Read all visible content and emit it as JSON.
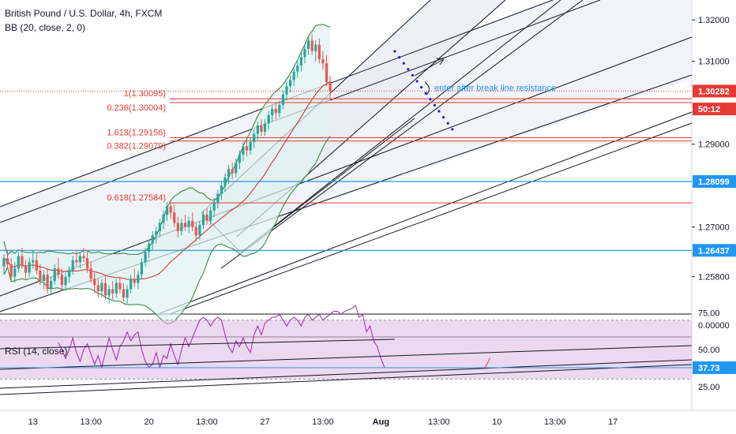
{
  "header": {
    "title": "British Pound / U.S. Dollar, 4h, FXCM",
    "indicator": "BB (20, close, 2, 0)",
    "rsi_label": "RSI (14, close)"
  },
  "annotation": "enter after break line resistance",
  "colors": {
    "bull": "#26a69a",
    "bear": "#ef5350",
    "fib": "#e53935",
    "horizontal": "#2196f3",
    "rsi": "#9c27b0",
    "rsi_fill": "#e1bee7",
    "dotted": "#1a1aff",
    "trendline": "#131722"
  },
  "chart_data": {
    "type": "candlestick",
    "price_axis": {
      "ticks": [
        1.32,
        1.31,
        1.29,
        1.27,
        1.258
      ],
      "tick_labels": [
        "1.32000",
        "1.31000",
        "1.29000",
        "1.27000",
        "1.25800"
      ],
      "range": [
        1.249,
        1.3248
      ]
    },
    "price_tags": [
      {
        "value": 1.30282,
        "label": "1.30282",
        "color": "#e53935"
      },
      {
        "value": 1.2985,
        "label": "50:12",
        "color": "#e53935"
      },
      {
        "value": 1.28099,
        "label": "1.28099",
        "color": "#2196f3"
      },
      {
        "value": 1.26437,
        "label": "1.26437",
        "color": "#2196f3"
      }
    ],
    "horizontal_lines": [
      {
        "value": 1.28099,
        "color": "#2196f3"
      },
      {
        "value": 1.26437,
        "color": "#2196f3"
      },
      {
        "value": 1.30282,
        "color": "#e53935",
        "dotted": true
      }
    ],
    "fib_levels": [
      {
        "label": "1(1.30095)",
        "value": 1.30095
      },
      {
        "label": "0.236(1.30004)",
        "value": 1.30004
      },
      {
        "label": "1.618(1.29156)",
        "value": 1.29156
      },
      {
        "label": "0.382(1.29079)",
        "value": 1.29079
      },
      {
        "label": "0.618(1.27584)",
        "value": 1.27584
      }
    ],
    "candles": [
      [
        1.2605,
        1.2635,
        1.2585,
        1.2625
      ],
      [
        1.2625,
        1.2645,
        1.26,
        1.261
      ],
      [
        1.261,
        1.2625,
        1.257,
        1.258
      ],
      [
        1.258,
        1.2615,
        1.2565,
        1.26
      ],
      [
        1.26,
        1.264,
        1.259,
        1.263
      ],
      [
        1.263,
        1.265,
        1.26,
        1.2605
      ],
      [
        1.2605,
        1.262,
        1.2575,
        1.259
      ],
      [
        1.259,
        1.2625,
        1.258,
        1.2615
      ],
      [
        1.2615,
        1.2645,
        1.26,
        1.262
      ],
      [
        1.262,
        1.2635,
        1.2585,
        1.2595
      ],
      [
        1.2595,
        1.261,
        1.256,
        1.257
      ],
      [
        1.257,
        1.2595,
        1.255,
        1.2585
      ],
      [
        1.2585,
        1.26,
        1.254,
        1.255
      ],
      [
        1.255,
        1.258,
        1.2535,
        1.257
      ],
      [
        1.257,
        1.261,
        1.256,
        1.26
      ],
      [
        1.26,
        1.2625,
        1.2575,
        1.2585
      ],
      [
        1.2585,
        1.26,
        1.2545,
        1.256
      ],
      [
        1.256,
        1.259,
        1.2545,
        1.258
      ],
      [
        1.258,
        1.2605,
        1.2565,
        1.2595
      ],
      [
        1.2595,
        1.263,
        1.2585,
        1.262
      ],
      [
        1.262,
        1.2645,
        1.2605,
        1.2615
      ],
      [
        1.2615,
        1.264,
        1.26,
        1.263
      ],
      [
        1.263,
        1.265,
        1.2615,
        1.2625
      ],
      [
        1.2625,
        1.2645,
        1.259,
        1.26
      ],
      [
        1.26,
        1.2615,
        1.2565,
        1.2575
      ],
      [
        1.2575,
        1.259,
        1.254,
        1.256
      ],
      [
        1.256,
        1.2575,
        1.253,
        1.2545
      ],
      [
        1.2545,
        1.2575,
        1.253,
        1.2565
      ],
      [
        1.2565,
        1.258,
        1.2525,
        1.2535
      ],
      [
        1.2535,
        1.256,
        1.2515,
        1.255
      ],
      [
        1.255,
        1.257,
        1.2525,
        1.254
      ],
      [
        1.254,
        1.2575,
        1.253,
        1.2565
      ],
      [
        1.2565,
        1.258,
        1.254,
        1.255
      ],
      [
        1.255,
        1.2565,
        1.252,
        1.253
      ],
      [
        1.253,
        1.256,
        1.2515,
        1.255
      ],
      [
        1.255,
        1.2585,
        1.254,
        1.2575
      ],
      [
        1.2575,
        1.26,
        1.2555,
        1.2565
      ],
      [
        1.2565,
        1.2595,
        1.255,
        1.2585
      ],
      [
        1.2585,
        1.2625,
        1.2575,
        1.2615
      ],
      [
        1.2615,
        1.265,
        1.2605,
        1.264
      ],
      [
        1.264,
        1.267,
        1.2625,
        1.266
      ],
      [
        1.266,
        1.269,
        1.2645,
        1.268
      ],
      [
        1.268,
        1.27,
        1.266,
        1.269
      ],
      [
        1.269,
        1.272,
        1.2675,
        1.271
      ],
      [
        1.271,
        1.274,
        1.2695,
        1.273
      ],
      [
        1.273,
        1.276,
        1.2715,
        1.275
      ],
      [
        1.275,
        1.2765,
        1.272,
        1.2735
      ],
      [
        1.2735,
        1.2755,
        1.27,
        1.271
      ],
      [
        1.271,
        1.2725,
        1.2675,
        1.269
      ],
      [
        1.269,
        1.272,
        1.268,
        1.271
      ],
      [
        1.271,
        1.273,
        1.269,
        1.27
      ],
      [
        1.27,
        1.2725,
        1.2685,
        1.2715
      ],
      [
        1.2715,
        1.2735,
        1.269,
        1.27
      ],
      [
        1.27,
        1.271,
        1.2665,
        1.268
      ],
      [
        1.268,
        1.2715,
        1.267,
        1.2705
      ],
      [
        1.2705,
        1.274,
        1.2695,
        1.273
      ],
      [
        1.273,
        1.2745,
        1.2705,
        1.2715
      ],
      [
        1.2715,
        1.275,
        1.2705,
        1.274
      ],
      [
        1.274,
        1.277,
        1.2725,
        1.276
      ],
      [
        1.276,
        1.279,
        1.2745,
        1.278
      ],
      [
        1.278,
        1.281,
        1.2765,
        1.28
      ],
      [
        1.28,
        1.283,
        1.2785,
        1.282
      ],
      [
        1.282,
        1.285,
        1.2805,
        1.284
      ],
      [
        1.284,
        1.2855,
        1.2815,
        1.283
      ],
      [
        1.283,
        1.2865,
        1.282,
        1.2855
      ],
      [
        1.2855,
        1.2885,
        1.284,
        1.2875
      ],
      [
        1.2875,
        1.2905,
        1.286,
        1.2895
      ],
      [
        1.2895,
        1.291,
        1.287,
        1.2885
      ],
      [
        1.2885,
        1.2915,
        1.2875,
        1.2905
      ],
      [
        1.2905,
        1.2935,
        1.289,
        1.2925
      ],
      [
        1.2925,
        1.2955,
        1.291,
        1.2945
      ],
      [
        1.2945,
        1.296,
        1.292,
        1.293
      ],
      [
        1.293,
        1.296,
        1.292,
        1.295
      ],
      [
        1.295,
        1.298,
        1.2935,
        1.297
      ],
      [
        1.297,
        1.2995,
        1.2955,
        1.2985
      ],
      [
        1.2985,
        1.3,
        1.296,
        1.2975
      ],
      [
        1.2975,
        1.3005,
        1.2965,
        1.2995
      ],
      [
        1.2995,
        1.303,
        1.2985,
        1.302
      ],
      [
        1.302,
        1.305,
        1.3005,
        1.304
      ],
      [
        1.304,
        1.3065,
        1.3025,
        1.3055
      ],
      [
        1.3055,
        1.3085,
        1.304,
        1.3075
      ],
      [
        1.3075,
        1.31,
        1.306,
        1.309
      ],
      [
        1.309,
        1.312,
        1.3075,
        1.311
      ],
      [
        1.311,
        1.314,
        1.3095,
        1.313
      ],
      [
        1.313,
        1.316,
        1.3115,
        1.315
      ],
      [
        1.315,
        1.3165,
        1.3115,
        1.3125
      ],
      [
        1.3125,
        1.315,
        1.31,
        1.314
      ],
      [
        1.314,
        1.3155,
        1.3095,
        1.3105
      ],
      [
        1.3105,
        1.3125,
        1.308,
        1.3095
      ],
      [
        1.3095,
        1.3115,
        1.304,
        1.305
      ],
      [
        1.305,
        1.3065,
        1.301,
        1.3028
      ]
    ],
    "x_axis": {
      "tick_labels": [
        "13",
        "13:00",
        "20",
        "13:00",
        "27",
        "13:00",
        "Aug",
        "13:00",
        "10",
        "13:00",
        "17"
      ],
      "tick_candle_index": [
        8,
        24,
        40,
        56,
        72,
        88,
        104,
        120,
        136,
        152,
        168
      ]
    },
    "rsi": {
      "ticks": [
        75,
        50,
        25
      ],
      "tick_labels": [
        "75.00",
        "50.00",
        "25.00"
      ],
      "current": 37.73,
      "current_label": "37.73",
      "lower_axis_label": "0.00000",
      "values": [
        55,
        50,
        44,
        50,
        58,
        48,
        42,
        50,
        54,
        47,
        40,
        46,
        38,
        48,
        58,
        50,
        43,
        52,
        56,
        62,
        56,
        60,
        62,
        50,
        42,
        38,
        40,
        48,
        38,
        46,
        44,
        54,
        46,
        40,
        50,
        58,
        52,
        58,
        64,
        70,
        72,
        70,
        66,
        70,
        72,
        70,
        60,
        52,
        48,
        56,
        52,
        58,
        52,
        48,
        60,
        66,
        60,
        68,
        70,
        72,
        72,
        74,
        70,
        66,
        70,
        72,
        70,
        66,
        72,
        74,
        70,
        72,
        74,
        70,
        72,
        74,
        76,
        76,
        74,
        76,
        77,
        78,
        80,
        72,
        74,
        62,
        66,
        56,
        52,
        44,
        38
      ]
    }
  }
}
